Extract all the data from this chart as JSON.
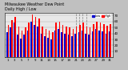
{
  "title": "Milwaukee Weather Dew Point",
  "subtitle": "Daily High / Low",
  "bg_color": "#c0c0c0",
  "plot_bg": "#e8e8e8",
  "bar_width": 0.38,
  "high_color": "#ff0000",
  "low_color": "#0000cc",
  "days": [
    1,
    2,
    3,
    4,
    5,
    6,
    7,
    8,
    9,
    10,
    11,
    12,
    13,
    14,
    15,
    16,
    17,
    18,
    19,
    20,
    21,
    22,
    23,
    24,
    25,
    26,
    27,
    28,
    29,
    30,
    31
  ],
  "highs": [
    55,
    62,
    68,
    52,
    45,
    50,
    58,
    72,
    68,
    65,
    52,
    48,
    45,
    42,
    58,
    60,
    55,
    52,
    50,
    48,
    52,
    55,
    58,
    52,
    50,
    56,
    60,
    58,
    56,
    53,
    56
  ],
  "lows": [
    42,
    50,
    58,
    38,
    32,
    38,
    45,
    60,
    55,
    52,
    40,
    35,
    33,
    30,
    45,
    48,
    42,
    40,
    38,
    35,
    40,
    42,
    45,
    40,
    38,
    43,
    48,
    45,
    43,
    40,
    43
  ],
  "ylim": [
    0,
    75
  ],
  "yticks": [
    10,
    20,
    30,
    40,
    50,
    60,
    70
  ],
  "dashed_cols": [
    21,
    22,
    23,
    24
  ],
  "legend_labels": [
    "Low",
    "High"
  ],
  "legend_colors": [
    "#0000cc",
    "#ff0000"
  ]
}
